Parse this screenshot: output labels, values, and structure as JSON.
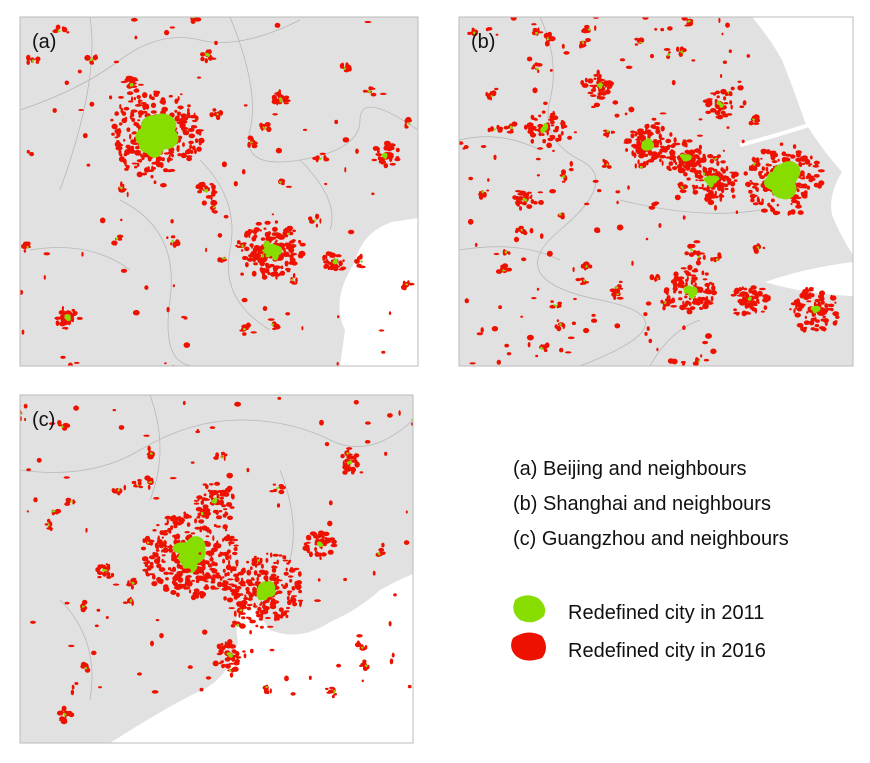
{
  "panels": [
    {
      "label": "(a)"
    },
    {
      "label": "(b)"
    },
    {
      "label": "(c)"
    }
  ],
  "legend": {
    "captions": [
      "(a) Beijing and neighbours",
      "(b) Shanghai and neighbours",
      "(c) Guangzhou and neighbours"
    ],
    "entries": [
      {
        "label": "Redefined city in 2011",
        "color": "#88dd00"
      },
      {
        "label": "Redefined city in 2016",
        "color": "#ee1100"
      }
    ]
  }
}
